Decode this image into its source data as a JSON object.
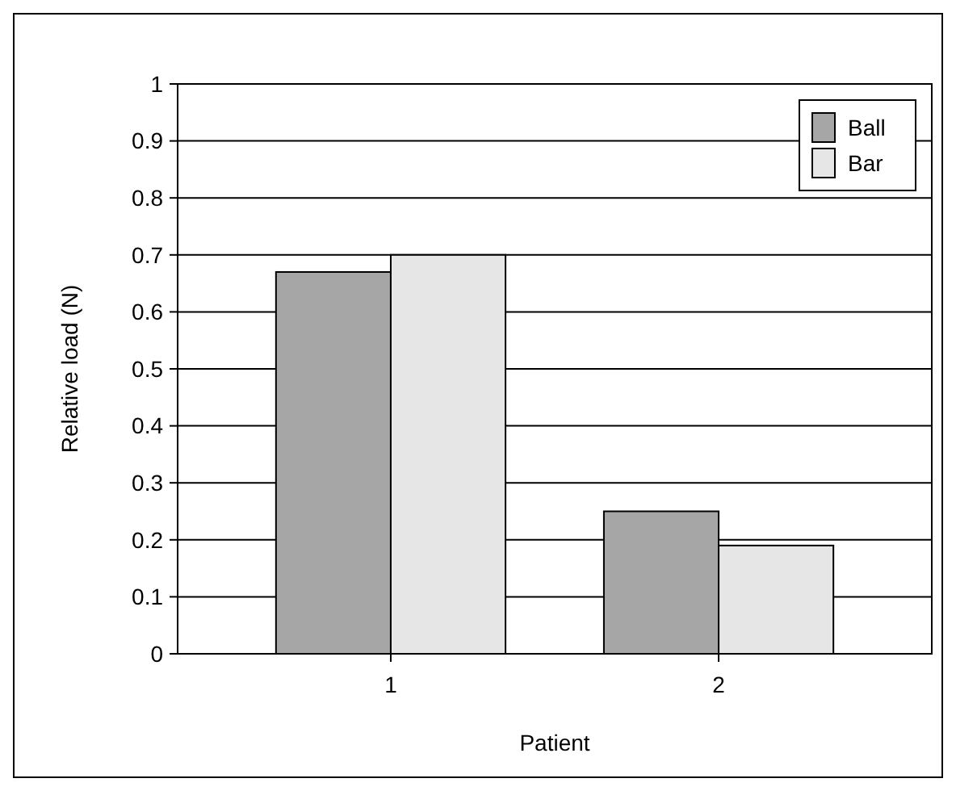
{
  "chart_data": {
    "type": "bar",
    "xlabel": "Patient",
    "ylabel": "Relative load (N)",
    "categories": [
      "1",
      "2"
    ],
    "series": [
      {
        "name": "Ball",
        "color": "#a6a6a6",
        "values": [
          0.67,
          0.25
        ]
      },
      {
        "name": "Bar",
        "color": "#e6e6e6",
        "values": [
          0.7,
          0.19
        ]
      }
    ],
    "ylim": [
      0,
      1
    ],
    "yticks": [
      0,
      0.1,
      0.2,
      0.3,
      0.4,
      0.5,
      0.6,
      0.7,
      0.8,
      0.9,
      1
    ],
    "grid": "y",
    "legend": "top right"
  }
}
